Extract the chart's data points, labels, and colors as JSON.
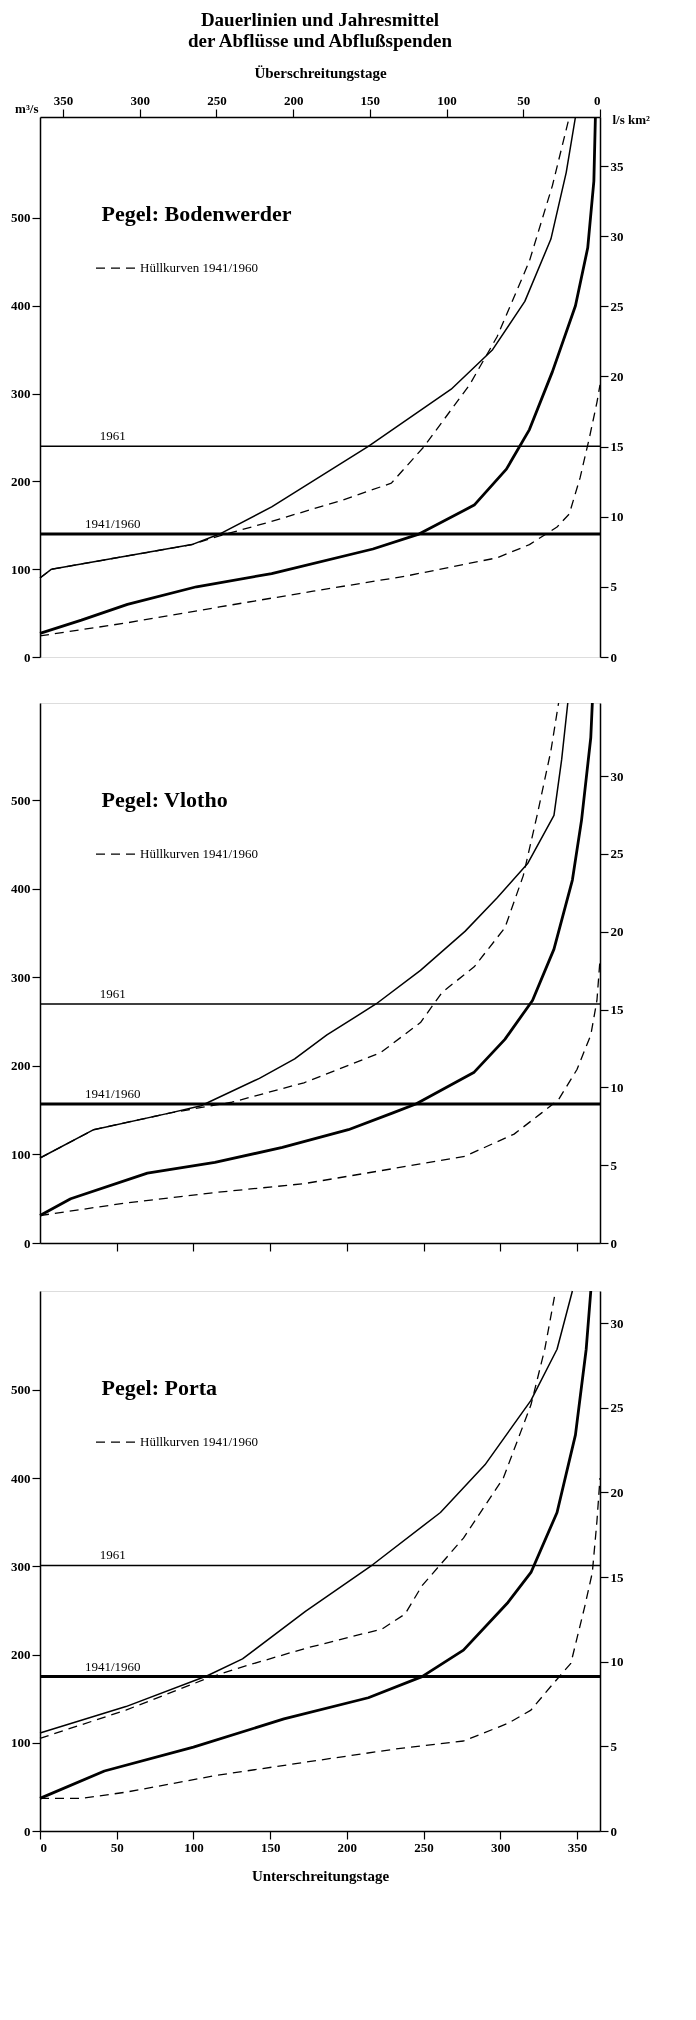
{
  "chart_data": [
    {
      "type": "line",
      "title": "Dauerlinien und Jahresmittel der Abflüsse und Abflußspenden",
      "subtitle": "Pegel: Bodenwerder",
      "xlabel": "Überschreitungstage",
      "ylabel": "m³/s",
      "y2label": "l/s km²",
      "legend": "top left",
      "xlim": [
        365,
        0
      ],
      "xticks": [
        350,
        300,
        250,
        200,
        150,
        100,
        50,
        0
      ],
      "ylim": [
        0,
        615
      ],
      "yticks": [
        0,
        100,
        200,
        300,
        400,
        500
      ],
      "y2lim": [
        0,
        38.5
      ],
      "y2ticks": [
        0,
        5,
        10,
        15,
        20,
        25,
        30,
        35
      ],
      "series": [
        {
          "color": "#000000",
          "line_style": "solid",
          "x": [
            365,
            357.5,
            266,
            248,
            214,
            151,
            97,
            70,
            49,
            32,
            22,
            16
          ],
          "values": [
            90,
            100,
            128,
            140,
            171,
            240,
            305,
            350,
            405,
            476,
            552,
            615
          ]
        },
        {
          "name": "Hüllkurven 1941/1960",
          "color": "#000000",
          "line_style": "dashed",
          "x": [
            365,
            357.5,
            266,
            248,
            217,
            169,
            136,
            115,
            85,
            67,
            46,
            31,
            20
          ],
          "values": [
            90,
            100,
            128,
            138,
            153,
            178,
            198,
            239,
            310,
            365,
            451,
            537,
            615
          ]
        },
        {
          "color": "#000000",
          "line_style": "solid",
          "x": [
            365,
            338,
            308,
            263,
            214,
            148,
            118,
            82,
            61,
            46,
            31,
            16,
            8,
            4,
            3
          ],
          "values": [
            27,
            42,
            60,
            80,
            95,
            123,
            140,
            173,
            214,
            259,
            325,
            400,
            466,
            542,
            615
          ]
        },
        {
          "color": "#000000",
          "line_style": "dashed",
          "x": [
            365,
            308,
            248,
            187,
            127,
            67,
            46,
            28,
            20,
            13,
            7,
            2,
            0
          ],
          "values": [
            24,
            39,
            57,
            75,
            92,
            113,
            128,
            148,
            163,
            204,
            249,
            290,
            310
          ]
        }
      ],
      "ref_lines": [
        {
          "axis": "y",
          "value": 240
        },
        {
          "axis": "y",
          "value": 140
        }
      ],
      "annotations": [
        {
          "text": "1961",
          "y": 240
        },
        {
          "text": "1941/1960",
          "y": 140
        }
      ]
    },
    {
      "type": "line",
      "subtitle": "Pegel: Vlotho",
      "legend": "top left",
      "tick_labels": "y",
      "xlim": [
        0,
        365
      ],
      "xticks": [
        50,
        100,
        150,
        200,
        250,
        300,
        350
      ],
      "ylim": [
        0,
        610
      ],
      "yticks": [
        0,
        100,
        200,
        300,
        400,
        500
      ],
      "y2lim": [
        0,
        34.7
      ],
      "y2ticks": [
        0,
        5,
        10,
        15,
        20,
        25,
        30
      ],
      "series": [
        {
          "color": "#000000",
          "line_style": "solid",
          "x": [
            0,
            35,
            85,
            105,
            143,
            166,
            187,
            219,
            248,
            277,
            298,
            318,
            335,
            340,
            344
          ],
          "values": [
            96,
            128,
            147,
            155,
            186,
            208,
            235,
            270,
            308,
            352,
            390,
            429,
            483,
            546,
            610
          ]
        },
        {
          "name": "Hüllkurven 1941/1960",
          "color": "#000000",
          "line_style": "dashed",
          "x": [
            0,
            35,
            85,
            125,
            172,
            222,
            248,
            262,
            283,
            303,
            315,
            324,
            333,
            338
          ],
          "values": [
            96,
            128,
            147,
            159,
            181,
            215,
            249,
            283,
            312,
            356,
            415,
            483,
            556,
            610
          ]
        },
        {
          "color": "#000000",
          "line_style": "solid",
          "x": [
            0,
            20,
            70,
            114,
            158,
            201,
            230,
            245,
            283,
            303,
            321,
            335,
            347,
            353,
            359,
            360
          ],
          "values": [
            31,
            50,
            79,
            91,
            108,
            128,
            147,
            157,
            193,
            230,
            274,
            332,
            410,
            478,
            571,
            610
          ]
        },
        {
          "color": "#000000",
          "line_style": "dashed",
          "x": [
            0,
            55,
            114,
            172,
            230,
            277,
            309,
            327,
            338,
            350,
            359,
            363,
            365
          ],
          "values": [
            31,
            45,
            57,
            67,
            84,
            98,
            123,
            147,
            162,
            196,
            235,
            274,
            320
          ]
        }
      ],
      "ref_lines": [
        {
          "axis": "y",
          "value": 270
        },
        {
          "axis": "y",
          "value": 157
        }
      ],
      "annotations": [
        {
          "text": "1961",
          "y": 270
        },
        {
          "text": "1941/1960",
          "y": 157
        }
      ]
    },
    {
      "type": "line",
      "subtitle": "Pegel: Porta",
      "xlabel": "Unterschreitungstage",
      "legend": "top left",
      "xlim": [
        0,
        365
      ],
      "xticks": [
        0,
        50,
        100,
        150,
        200,
        250,
        300,
        350
      ],
      "ylim": [
        0,
        612
      ],
      "yticks": [
        0,
        100,
        200,
        300,
        400,
        500
      ],
      "y2lim": [
        0,
        31.9
      ],
      "y2ticks": [
        0,
        5,
        10,
        15,
        20,
        25,
        30
      ],
      "series": [
        {
          "color": "#000000",
          "line_style": "solid",
          "x": [
            0,
            56,
            109,
            132,
            173,
            217,
            261,
            290,
            320,
            337,
            347
          ],
          "values": [
            111,
            141,
            176,
            195,
            249,
            302,
            361,
            415,
            488,
            546,
            612
          ]
        },
        {
          "name": "Hüllkurven 1941/1960",
          "color": "#000000",
          "line_style": "dashed",
          "x": [
            0,
            56,
            109,
            130,
            173,
            223,
            238,
            249,
            276,
            302,
            320,
            329,
            336
          ],
          "values": [
            105,
            137,
            173,
            185,
            207,
            229,
            246,
            278,
            332,
            400,
            483,
            546,
            612
          ]
        },
        {
          "color": "#000000",
          "line_style": "solid",
          "x": [
            0,
            42,
            100,
            159,
            214,
            249,
            276,
            305,
            320,
            337,
            349,
            356,
            359
          ],
          "values": [
            37,
            68,
            95,
            127,
            151,
            175,
            205,
            259,
            293,
            361,
            449,
            546,
            612
          ]
        },
        {
          "color": "#000000",
          "line_style": "dashed",
          "x": [
            0,
            27,
            56,
            115,
            173,
            232,
            276,
            305,
            320,
            334,
            346,
            355,
            360,
            363,
            365
          ],
          "values": [
            37,
            37,
            44,
            63,
            78,
            93,
            102,
            122,
            137,
            166,
            190,
            254,
            293,
            351,
            400
          ]
        }
      ],
      "ref_lines": [
        {
          "axis": "y",
          "value": 301
        },
        {
          "axis": "y",
          "value": 175
        }
      ],
      "annotations": [
        {
          "text": "1961",
          "y": 301
        },
        {
          "text": "1941/1960",
          "y": 175
        }
      ]
    }
  ]
}
